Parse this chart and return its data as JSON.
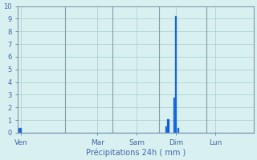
{
  "xlabel": "Précipitations 24h ( mm )",
  "background_color": "#d8f0f0",
  "bar_color": "#1155cc",
  "bar_edge_color": "#3399ff",
  "grid_color": "#aacccc",
  "axis_label_color": "#4466aa",
  "tick_color": "#4466aa",
  "spine_color": "#8899aa",
  "ylim": [
    0,
    10
  ],
  "yticks": [
    0,
    1,
    2,
    3,
    4,
    5,
    6,
    7,
    8,
    9,
    10
  ],
  "num_bars": 120,
  "bar_values": [
    0.38,
    0.38,
    0,
    0,
    0,
    0,
    0,
    0,
    0,
    0,
    0,
    0,
    0,
    0,
    0,
    0,
    0,
    0,
    0,
    0,
    0,
    0,
    0,
    0,
    0,
    0,
    0,
    0,
    0,
    0,
    0,
    0,
    0,
    0,
    0,
    0,
    0,
    0,
    0,
    0,
    0,
    0,
    0,
    0,
    0,
    0,
    0,
    0,
    0,
    0,
    0,
    0,
    0,
    0,
    0,
    0,
    0,
    0,
    0,
    0,
    0,
    0,
    0,
    0,
    0,
    0,
    0,
    0,
    0,
    0,
    0,
    0,
    0,
    0,
    0,
    0.5,
    1.1,
    0,
    0,
    2.75,
    9.2,
    0.4,
    0,
    0,
    0,
    0,
    0,
    0,
    0,
    0,
    0,
    0,
    0,
    0,
    0,
    0,
    0,
    0,
    0,
    0,
    0,
    0,
    0,
    0,
    0,
    0,
    0,
    0,
    0,
    0,
    0,
    0,
    0,
    0,
    0,
    0,
    0,
    0,
    0,
    0
  ],
  "day_labels": [
    "Ven",
    "Mar",
    "Sam",
    "Dim",
    "Lun"
  ],
  "day_label_bar_positions": [
    1,
    40,
    60,
    80,
    100
  ],
  "vline_bar_positions": [
    0,
    24,
    48,
    72,
    96,
    120
  ],
  "bar_width": 0.9,
  "figsize": [
    3.2,
    2.0
  ],
  "dpi": 100,
  "xlabel_fontsize": 7,
  "ytick_fontsize": 6,
  "xtick_fontsize": 6.5
}
